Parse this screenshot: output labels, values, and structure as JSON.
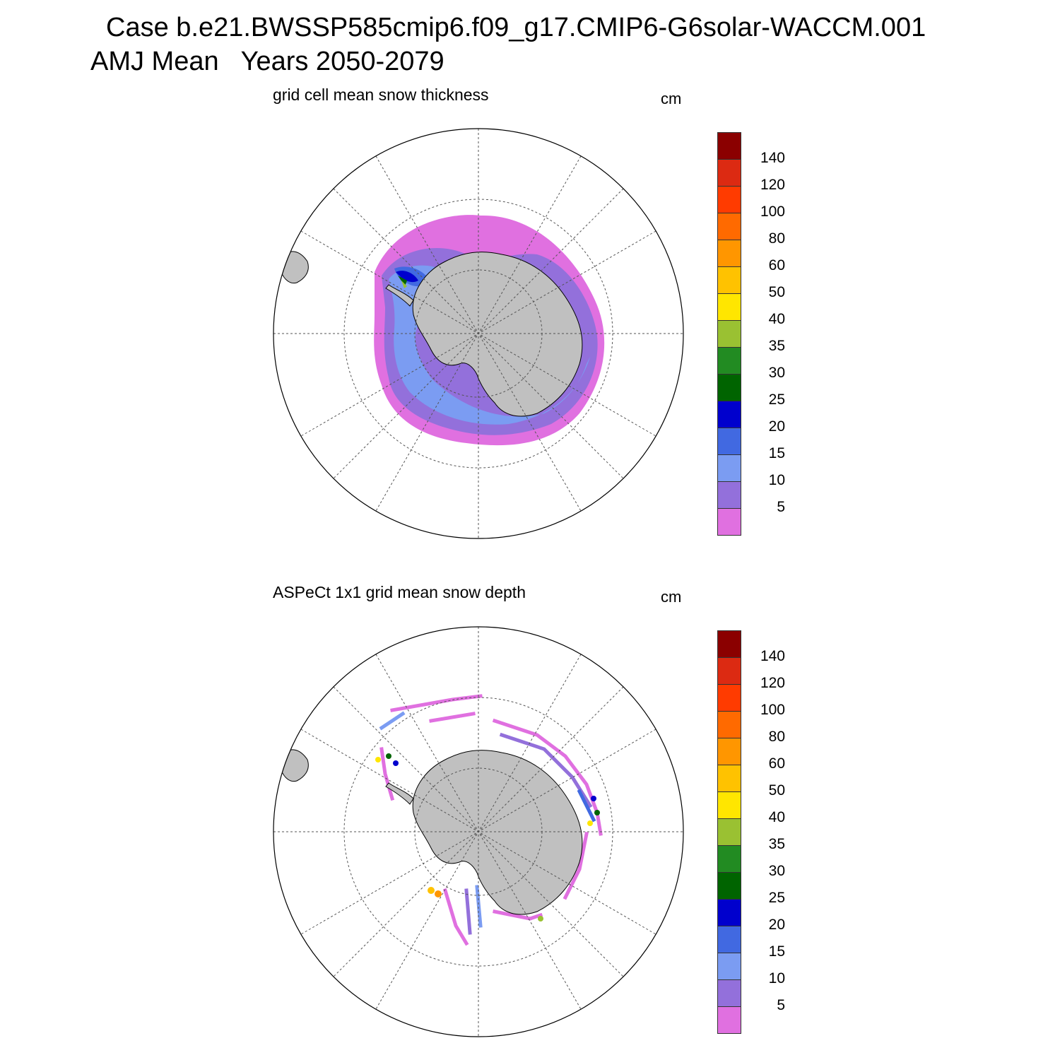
{
  "header": {
    "line1": "Case b.e21.BWSSP585cmip6.f09_g17.CMIP6-G6solar-WACCM.001",
    "line2": "AMJ Mean   Years 2050-2079"
  },
  "panels": [
    {
      "title": "grid cell mean snow thickness",
      "unit": "cm",
      "colorbar": {
        "levels": [
          "140",
          "120",
          "100",
          "80",
          "60",
          "50",
          "40",
          "35",
          "30",
          "25",
          "20",
          "15",
          "10",
          "5"
        ],
        "colors": [
          "#8b0000",
          "#dc2a12",
          "#ff3b00",
          "#ff6a00",
          "#ff9600",
          "#ffc200",
          "#ffe600",
          "#9ac132",
          "#228b22",
          "#006400",
          "#0000cd",
          "#4169e1",
          "#7b9cf2",
          "#9370db",
          "#e070e0"
        ]
      }
    },
    {
      "title": "ASPeCt 1x1 grid mean snow depth",
      "unit": "cm",
      "colorbar": {
        "levels": [
          "140",
          "120",
          "100",
          "80",
          "60",
          "50",
          "40",
          "35",
          "30",
          "25",
          "20",
          "15",
          "10",
          "5"
        ],
        "colors": [
          "#8b0000",
          "#dc2a12",
          "#ff3b00",
          "#ff6a00",
          "#ff9600",
          "#ffc200",
          "#ffe600",
          "#9ac132",
          "#228b22",
          "#006400",
          "#0000cd",
          "#4169e1",
          "#7b9cf2",
          "#9370db",
          "#e070e0"
        ]
      }
    }
  ],
  "map_colors": {
    "land": "#c0c0c0",
    "coast": "#000000",
    "grid": "#555555"
  }
}
